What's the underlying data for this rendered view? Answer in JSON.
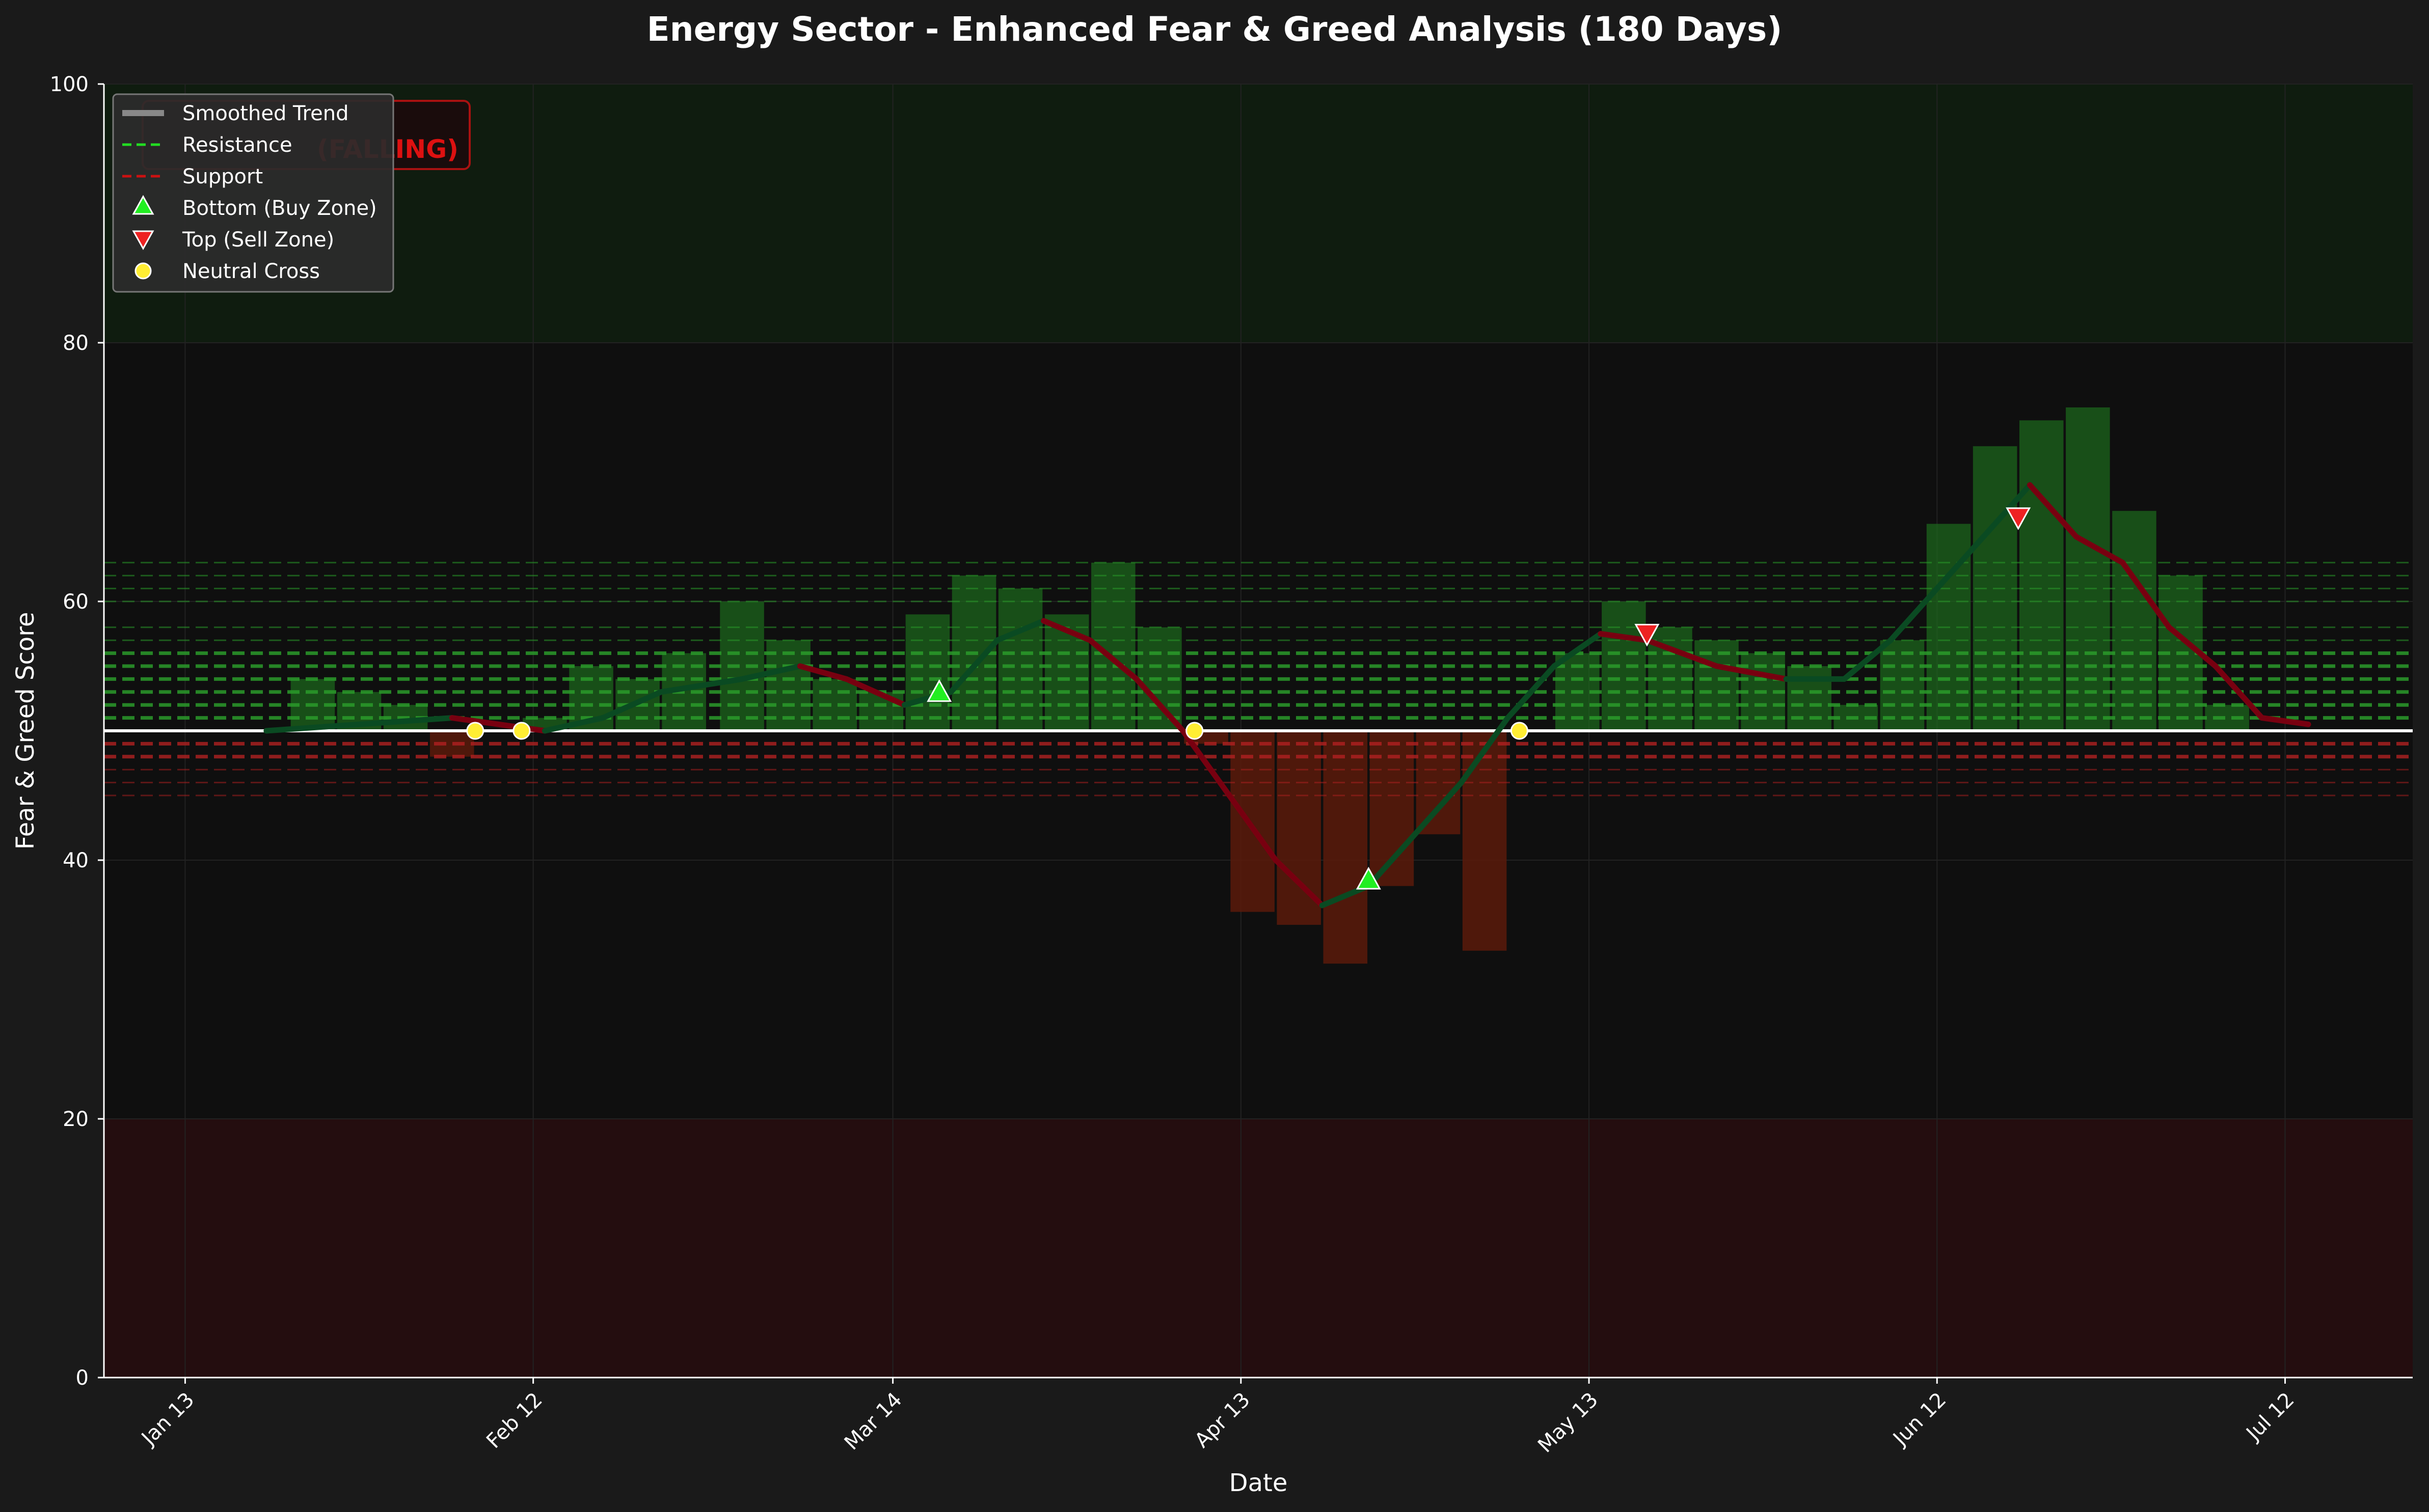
{
  "chart_data": {
    "type": "line",
    "title": "Energy Sector - Enhanced Fear & Greed Analysis (180 Days)",
    "xlabel": "Date",
    "ylabel": "Fear & Greed Score",
    "xlim": [
      "2024-01-06",
      "2024-07-23"
    ],
    "ylim": [
      0,
      100
    ],
    "x_ticks": [
      "Jan 13",
      "Feb 12",
      "Mar 14",
      "Apr 13",
      "May 13",
      "Jun 12",
      "Jul 12"
    ],
    "x_tick_dates": [
      "2024-01-13",
      "2024-02-12",
      "2024-03-14",
      "2024-04-13",
      "2024-05-13",
      "2024-06-12",
      "2024-07-12"
    ],
    "y_ticks": [
      0,
      20,
      40,
      60,
      80,
      100
    ],
    "grid": true,
    "neutral_line": 50,
    "zones": {
      "extreme_greed": [
        80,
        100
      ],
      "extreme_fear": [
        0,
        20
      ]
    },
    "annotation_box": "(FALLING)",
    "smoothed_trend": {
      "name": "Smoothed Trend",
      "x": [
        "2024-01-20",
        "2024-01-28",
        "2024-02-05",
        "2024-02-13",
        "2024-02-18",
        "2024-02-23",
        "2024-03-01",
        "2024-03-06",
        "2024-03-10",
        "2024-03-15",
        "2024-03-19",
        "2024-03-23",
        "2024-03-27",
        "2024-03-31",
        "2024-04-04",
        "2024-04-08",
        "2024-04-12",
        "2024-04-16",
        "2024-04-20",
        "2024-04-24",
        "2024-04-28",
        "2024-05-02",
        "2024-05-06",
        "2024-05-10",
        "2024-05-14",
        "2024-05-18",
        "2024-05-24",
        "2024-05-30",
        "2024-06-04",
        "2024-06-08",
        "2024-06-12",
        "2024-06-16",
        "2024-06-20",
        "2024-06-24",
        "2024-06-28",
        "2024-07-02",
        "2024-07-06",
        "2024-07-10",
        "2024-07-14"
      ],
      "y": [
        50,
        50.5,
        51,
        50,
        51,
        53,
        54,
        55,
        54,
        52,
        53,
        57,
        58.5,
        57,
        54,
        50,
        45,
        40,
        36.5,
        38,
        42,
        46,
        51,
        55,
        57.5,
        57,
        55,
        54,
        54,
        57,
        61,
        65,
        69,
        65,
        63,
        58,
        55,
        51,
        50.5
      ]
    },
    "score_bars": {
      "x": [
        "2024-01-24",
        "2024-01-28",
        "2024-02-01",
        "2024-02-05",
        "2024-02-09",
        "2024-02-13",
        "2024-02-17",
        "2024-02-21",
        "2024-02-25",
        "2024-03-01",
        "2024-03-05",
        "2024-03-09",
        "2024-03-13",
        "2024-03-17",
        "2024-03-21",
        "2024-03-25",
        "2024-03-29",
        "2024-04-02",
        "2024-04-06",
        "2024-04-10",
        "2024-04-14",
        "2024-04-18",
        "2024-04-22",
        "2024-04-26",
        "2024-04-30",
        "2024-05-04",
        "2024-05-08",
        "2024-05-12",
        "2024-05-16",
        "2024-05-20",
        "2024-05-24",
        "2024-05-28",
        "2024-06-01",
        "2024-06-05",
        "2024-06-09",
        "2024-06-13",
        "2024-06-17",
        "2024-06-21",
        "2024-06-25",
        "2024-06-29",
        "2024-07-03",
        "2024-07-07"
      ],
      "values": [
        54,
        53,
        52,
        48,
        50,
        51,
        55,
        54,
        56,
        60,
        57,
        54,
        53,
        59,
        62,
        61,
        59,
        63,
        58,
        49,
        36,
        35,
        32,
        38,
        42,
        33,
        50,
        56,
        60,
        58,
        57,
        56,
        55,
        52,
        57,
        66,
        72,
        74,
        75,
        67,
        62,
        52
      ]
    },
    "resistance_levels": [
      51,
      52,
      53,
      54,
      55,
      56,
      57,
      58,
      60,
      61,
      62,
      63
    ],
    "support_levels": [
      49,
      48,
      47,
      46,
      45
    ],
    "bottoms": {
      "name": "Bottom (Buy Zone)",
      "x": [
        "2024-03-18",
        "2024-04-24"
      ],
      "y": [
        53,
        38.5
      ]
    },
    "tops": {
      "name": "Top (Sell Zone)",
      "x": [
        "2024-05-18",
        "2024-06-19"
      ],
      "y": [
        57.5,
        66.5
      ]
    },
    "neutral_crosses": {
      "name": "Neutral Cross",
      "x": [
        "2024-02-07",
        "2024-02-11",
        "2024-04-09",
        "2024-05-07"
      ],
      "y": [
        50,
        50,
        50,
        50
      ]
    },
    "legend": {
      "position": "upper-left",
      "entries": [
        "Smoothed Trend",
        "Resistance",
        "Support",
        "Bottom (Buy Zone)",
        "Top (Sell Zone)",
        "Neutral Cross"
      ]
    },
    "colors": {
      "background": "#1a1a1a",
      "plot_bg": "#0f0f0f",
      "greed_zone": "#0f1c0f",
      "fear_zone": "#240d0f",
      "trend_rising": "#0a4a22",
      "trend_falling": "#780010",
      "resistance": "#2a9a2a",
      "support": "#b02020",
      "bar_greed": "#1d6b1d",
      "bar_fear": "#5a1a0a",
      "bottom_marker": "#22ee22",
      "top_marker": "#ee2222",
      "cross_marker": "#ffee33"
    }
  }
}
